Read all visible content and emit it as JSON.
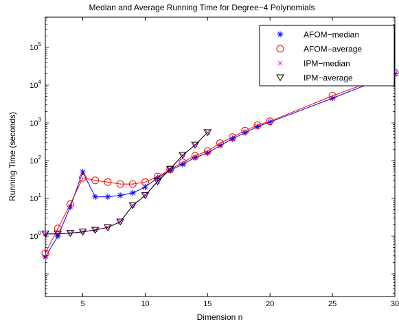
{
  "chart_data": {
    "type": "line",
    "title": "Median and Average Running Time for Degree−4 Polynomials",
    "xlabel": "Dimension n",
    "ylabel": "Running Time (seconds)",
    "xlim": [
      2,
      30
    ],
    "ylim_log10": [
      -1.6,
      5.8
    ],
    "y_scale": "log",
    "x_ticks": [
      5,
      10,
      15,
      20,
      25,
      30
    ],
    "y_ticks": [
      {
        "base": "10",
        "exp": "0",
        "value": 1
      },
      {
        "base": "10",
        "exp": "1",
        "value": 10
      },
      {
        "base": "10",
        "exp": "2",
        "value": 100
      },
      {
        "base": "10",
        "exp": "3",
        "value": 1000
      },
      {
        "base": "10",
        "exp": "4",
        "value": 10000
      },
      {
        "base": "10",
        "exp": "5",
        "value": 100000
      }
    ],
    "grid": false,
    "legend_position": "top-right",
    "series": [
      {
        "name": "AFOM−median",
        "color": "#0000ff",
        "marker": "asterisk",
        "x": [
          2,
          3,
          4,
          5,
          6,
          7,
          8,
          9,
          10,
          11,
          12,
          13,
          14,
          15,
          16,
          17,
          18,
          19,
          20,
          25,
          30
        ],
        "y": [
          0.28,
          1.0,
          6.0,
          50,
          11,
          11,
          12,
          14,
          20,
          35,
          55,
          80,
          120,
          160,
          250,
          380,
          550,
          800,
          1050,
          4500,
          20000
        ]
      },
      {
        "name": "AFOM−average",
        "color": "#ff0000",
        "marker": "circle",
        "x": [
          2,
          3,
          4,
          5,
          6,
          7,
          8,
          9,
          10,
          11,
          12,
          13,
          14,
          15,
          16,
          17,
          18,
          19,
          20,
          25,
          30
        ],
        "y": [
          0.35,
          1.6,
          7.0,
          35,
          30,
          27,
          24,
          24,
          27,
          38,
          58,
          90,
          135,
          180,
          290,
          420,
          620,
          870,
          1100,
          5200,
          21000
        ]
      },
      {
        "name": "IPM−median",
        "color": "#ff00ff",
        "marker": "x",
        "x": [
          2,
          3,
          4,
          5,
          6,
          7,
          8,
          9,
          10,
          11,
          12,
          13,
          14,
          15
        ],
        "y": [
          1.15,
          1.15,
          1.2,
          1.3,
          1.45,
          1.7,
          2.4,
          6.5,
          12,
          28,
          58,
          140,
          260,
          560
        ]
      },
      {
        "name": "IPM−average",
        "color": "#000000",
        "marker": "triangle-down",
        "x": [
          2,
          3,
          4,
          5,
          6,
          7,
          8,
          9,
          10,
          11,
          12,
          13,
          14,
          15
        ],
        "y": [
          1.15,
          1.15,
          1.2,
          1.3,
          1.45,
          1.7,
          2.4,
          6.5,
          12,
          28,
          60,
          140,
          260,
          560
        ]
      }
    ]
  }
}
